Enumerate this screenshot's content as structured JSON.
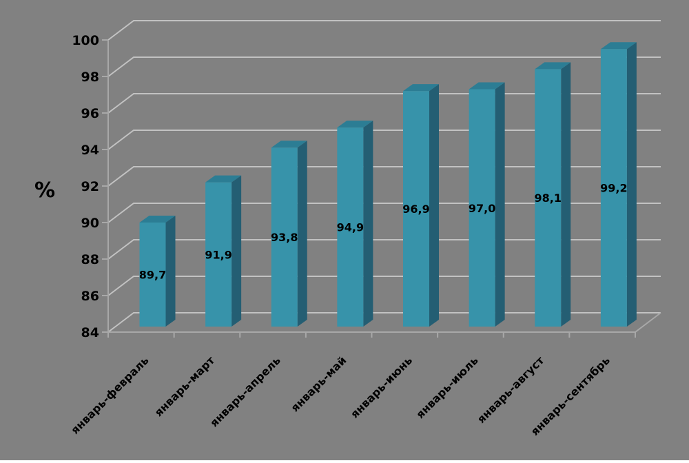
{
  "chart_data": {
    "type": "bar",
    "style": "3d-column",
    "title": "",
    "xlabel": "",
    "ylabel": "%",
    "categories": [
      "январь-февраль",
      "январь-март",
      "январь-апрель",
      "январь-май",
      "январь-июнь",
      "январь-июль",
      "январь-август",
      "январь-сентябрь"
    ],
    "values": [
      89.7,
      91.9,
      93.8,
      94.9,
      96.9,
      97.0,
      98.1,
      99.2
    ],
    "value_labels": [
      "89,7",
      "91,9",
      "93,8",
      "94,9",
      "96,9",
      "97,0",
      "98,1",
      "99,2"
    ],
    "ylim": [
      84,
      100
    ],
    "ytick_step": 2,
    "yticks": [
      84,
      86,
      88,
      90,
      92,
      94,
      96,
      98,
      100
    ],
    "grid": true,
    "legend": "none",
    "x_label_rotation_deg": -45,
    "decimal_separator": ",",
    "colors": {
      "background": "#818181",
      "bar_front": "#3793AA",
      "bar_top": "#2C7D94",
      "bar_side": "#245E73",
      "gridline": "#C2C2C2",
      "axis": "#A8A8A8",
      "label": "#000000"
    }
  }
}
